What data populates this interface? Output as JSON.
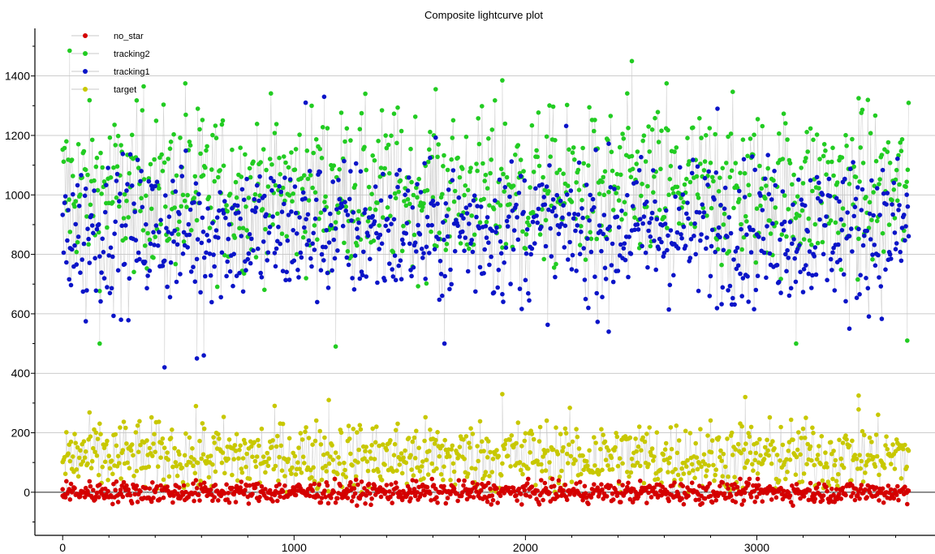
{
  "chart_data": {
    "type": "scatter",
    "title": "Composite lightcurve plot",
    "xlabel": "",
    "ylabel": "",
    "xlim": [
      -120,
      3770
    ],
    "ylim": [
      -145,
      1560
    ],
    "x_ticks": [
      0,
      1000,
      2000,
      3000
    ],
    "x_tick_labels": [
      "0",
      "1000",
      "2000",
      "3000"
    ],
    "y_ticks": [
      0,
      200,
      400,
      600,
      800,
      1000,
      1200,
      1400
    ],
    "y_tick_labels": [
      "0",
      "200",
      "400",
      "600",
      "800",
      "1000",
      "1200",
      "1400"
    ],
    "grid": "horizontal",
    "legend_position": "top-left",
    "n_points": 3660,
    "series": [
      {
        "name": "no_star",
        "color": "#d40000",
        "mean": 0,
        "spread": 18,
        "min": -45,
        "max": 45,
        "sample_x": [
          0,
          250,
          500,
          750,
          1000,
          1250,
          1500,
          1750,
          2000,
          2250,
          2500,
          2750,
          3000,
          3250,
          3500,
          3650
        ],
        "sample_y": [
          -12,
          8,
          -20,
          15,
          3,
          -30,
          10,
          -5,
          22,
          -15,
          5,
          -25,
          12,
          -8,
          18,
          -40
        ]
      },
      {
        "name": "tracking2",
        "color": "#22cc22",
        "mean": 1020,
        "spread": 130,
        "min": 495,
        "max": 1450,
        "sample_x": [
          30,
          160,
          350,
          530,
          1180,
          1900,
          2460,
          2610,
          3170,
          3440,
          3650
        ],
        "sample_y": [
          1485,
          500,
          1365,
          1375,
          490,
          1385,
          1450,
          1375,
          500,
          1325,
          510
        ]
      },
      {
        "name": "tracking1",
        "color": "#0a14c8",
        "mean": 880,
        "spread": 120,
        "min": 420,
        "max": 1330,
        "sample_x": [
          100,
          440,
          580,
          610,
          1050,
          1130,
          1650,
          2360,
          2830,
          3400
        ],
        "sample_y": [
          575,
          420,
          450,
          460,
          1310,
          1330,
          500,
          540,
          1290,
          550
        ]
      },
      {
        "name": "target",
        "color": "#c8c800",
        "mean": 120,
        "spread": 60,
        "min": 0,
        "max": 330,
        "sample_x": [
          1150,
          1900,
          2950,
          3440
        ],
        "sample_y": [
          310,
          330,
          320,
          325
        ]
      }
    ]
  }
}
